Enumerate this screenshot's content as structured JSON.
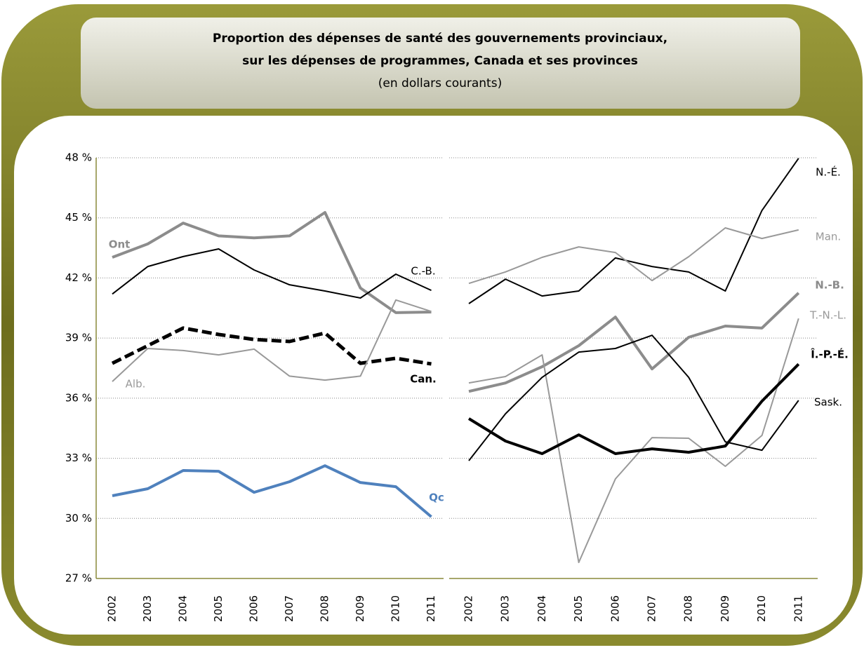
{
  "header": {
    "title_lines": [
      "Proportion des dépenses de santé des gouvernements provinciaux,",
      "sur les dépenses de programmes, Canada et ses provinces"
    ],
    "subtitle": "(en dollars courants)"
  },
  "chart_data": [
    {
      "type": "line",
      "categories": [
        "2002",
        "2003",
        "2004",
        "2005",
        "2006",
        "2007",
        "2008",
        "2009",
        "2010",
        "2011"
      ],
      "ylim": [
        27,
        48
      ],
      "yticks": [
        {
          "value": 27,
          "label": "27 %"
        },
        {
          "value": 30,
          "label": "30 %"
        },
        {
          "value": 33,
          "label": "33 %"
        },
        {
          "value": 36,
          "label": "36 %"
        },
        {
          "value": 39,
          "label": "39 %"
        },
        {
          "value": 42,
          "label": "42 %"
        },
        {
          "value": 45,
          "label": "45 %"
        },
        {
          "value": 48,
          "label": "48 %"
        }
      ],
      "grid": true,
      "series": [
        {
          "name": "Ont",
          "color": "#8c8c8c",
          "line_width": 4,
          "bold": true,
          "values": [
            43.03,
            43.7,
            44.74,
            44.1,
            44.0,
            44.1,
            45.27,
            41.5,
            40.27,
            40.3
          ]
        },
        {
          "name": "C.-B.",
          "color": "#000000",
          "line_width": 2,
          "bold": false,
          "values": [
            41.2,
            42.57,
            43.07,
            43.45,
            42.4,
            41.66,
            41.35,
            41.0,
            42.19,
            41.38
          ]
        },
        {
          "name": "Can.",
          "color": "#000000",
          "line_width": 5,
          "dashed": true,
          "bold": true,
          "values": [
            37.74,
            38.62,
            39.5,
            39.18,
            38.93,
            38.83,
            39.25,
            37.74,
            37.99,
            37.71
          ]
        },
        {
          "name": "Alb.",
          "color": "#999999",
          "line_width": 2,
          "bold": false,
          "values": [
            36.83,
            38.48,
            38.38,
            38.16,
            38.45,
            37.1,
            36.9,
            37.1,
            40.9,
            40.33
          ]
        },
        {
          "name": "Qc",
          "color": "#4f81bd",
          "line_width": 4,
          "bold": true,
          "values": [
            31.13,
            31.48,
            32.39,
            32.35,
            31.3,
            31.83,
            32.63,
            31.79,
            31.58,
            30.08
          ]
        }
      ]
    },
    {
      "type": "line",
      "categories": [
        "2002",
        "2003",
        "2004",
        "2005",
        "2006",
        "2007",
        "2008",
        "2009",
        "2010",
        "2011"
      ],
      "ylim": [
        27,
        48
      ],
      "yticks": [
        27,
        30,
        33,
        36,
        39,
        42,
        45,
        48
      ],
      "grid": true,
      "series": [
        {
          "name": "N.-É.",
          "color": "#000000",
          "line_width": 2,
          "bold": false,
          "values": [
            40.72,
            41.94,
            41.1,
            41.35,
            43.0,
            42.57,
            42.3,
            41.35,
            45.37,
            47.97
          ]
        },
        {
          "name": "Man.",
          "color": "#999999",
          "line_width": 2,
          "bold": false,
          "values": [
            41.73,
            42.3,
            43.03,
            43.55,
            43.27,
            41.87,
            43.06,
            44.5,
            43.97,
            44.4
          ]
        },
        {
          "name": "N.-B.",
          "color": "#8c8c8c",
          "line_width": 4,
          "bold": true,
          "values": [
            36.34,
            36.76,
            37.57,
            38.62,
            40.05,
            37.46,
            39.04,
            39.6,
            39.5,
            41.25
          ]
        },
        {
          "name": "T.-N.-L.",
          "color": "#999999",
          "line_width": 2,
          "bold": false,
          "values": [
            36.76,
            37.08,
            38.16,
            27.8,
            31.97,
            34.03,
            34.0,
            32.6,
            34.14,
            39.98
          ]
        },
        {
          "name": "Î.-P.-É.",
          "color": "#000000",
          "line_width": 4,
          "bold": true,
          "values": [
            34.98,
            33.86,
            33.23,
            34.17,
            33.23,
            33.47,
            33.3,
            33.61,
            35.85,
            37.7
          ]
        },
        {
          "name": "Sask.",
          "color": "#000000",
          "line_width": 2,
          "bold": false,
          "values": [
            32.88,
            35.22,
            37.04,
            38.3,
            38.48,
            39.14,
            37.04,
            33.82,
            33.4,
            35.89
          ]
        }
      ]
    }
  ]
}
